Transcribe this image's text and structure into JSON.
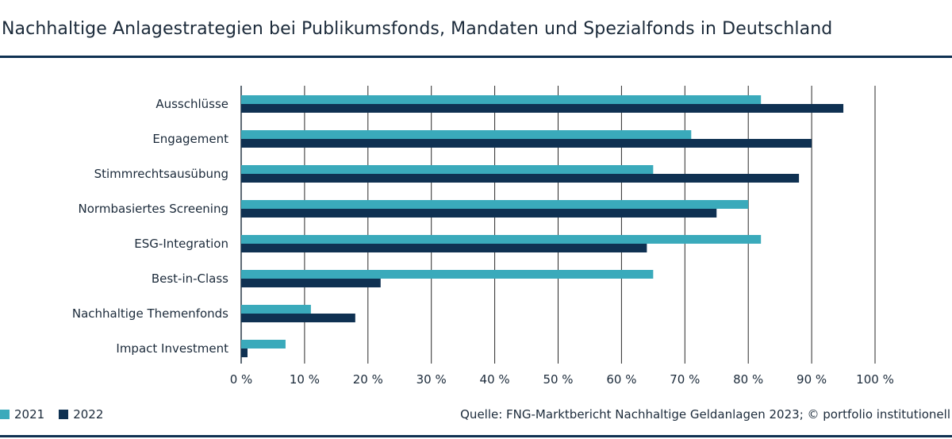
{
  "chart_data": {
    "type": "bar",
    "orientation": "horizontal",
    "title": "Nachhaltige Anlagestrategien bei Publikumsfonds, Mandaten und Spezialfonds in Deutschland",
    "categories": [
      "Ausschlüsse",
      "Engagement",
      "Stimmrechtsausübung",
      "Normbasiertes Screening",
      "ESG-Integration",
      "Best-in-Class",
      "Nachhaltige Themenfonds",
      "Impact Investment"
    ],
    "series": [
      {
        "name": "2021",
        "color": "#3aaabb",
        "values": [
          82,
          71,
          65,
          80,
          82,
          65,
          11,
          7
        ]
      },
      {
        "name": "2022",
        "color": "#0f3152",
        "values": [
          95,
          90,
          88,
          75,
          64,
          22,
          18,
          1
        ]
      }
    ],
    "xlim": [
      0,
      100
    ],
    "xticks": [
      0,
      10,
      20,
      30,
      40,
      50,
      60,
      70,
      80,
      90,
      100
    ],
    "xtick_labels": [
      "0 %",
      "10 %",
      "20 %",
      "30 %",
      "40 %",
      "50 %",
      "60 %",
      "70 %",
      "80 %",
      "90 %",
      "100 %"
    ],
    "grid": "vertical",
    "legend_position": "bottom-left",
    "source": "Quelle: FNG-Marktbericht Nachhaltige Geldanlagen 2023; © portfolio institutionell"
  }
}
